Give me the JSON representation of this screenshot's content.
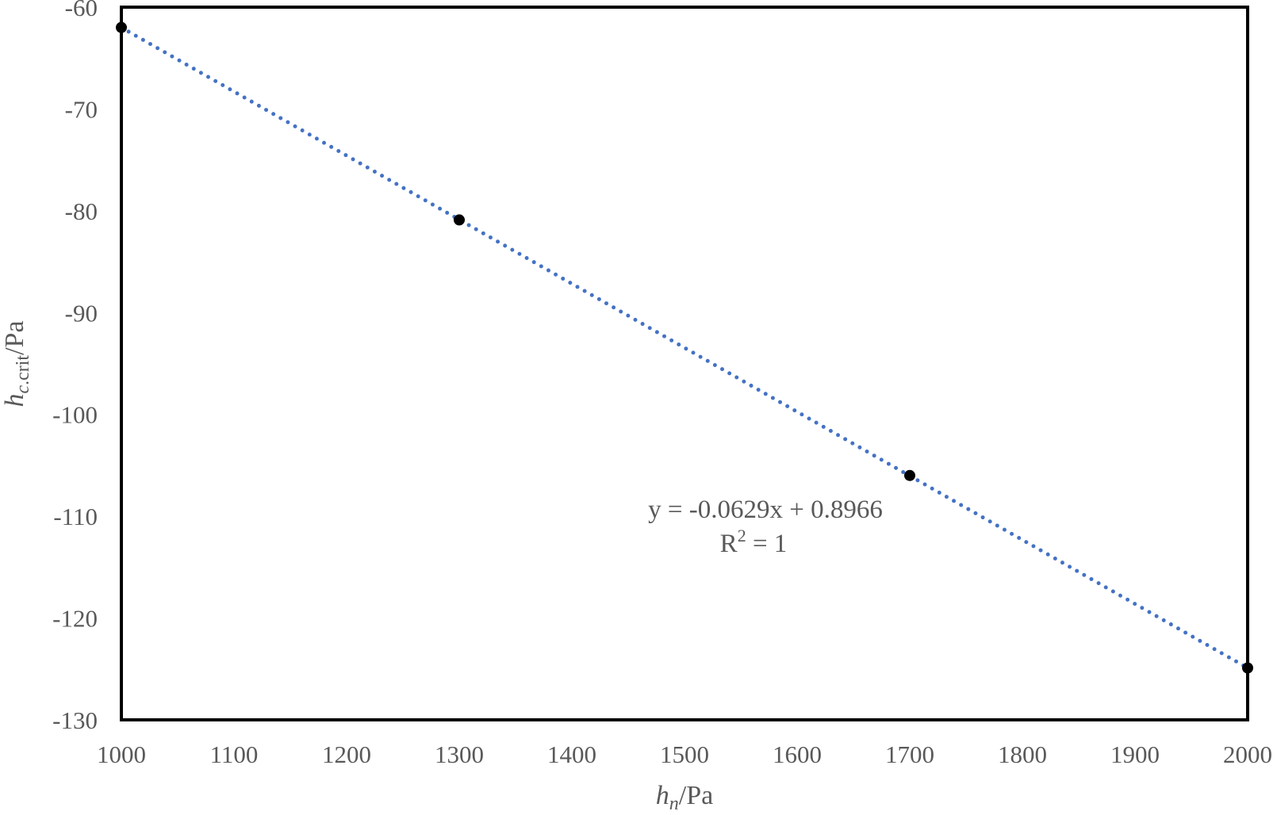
{
  "chart_data": {
    "type": "scatter",
    "xlabel": {
      "main": "h",
      "sub": "n",
      "unit": "/Pa"
    },
    "ylabel": {
      "main": "h",
      "sub_italic": "c",
      "sub_plain": ".crit",
      "unit": "/Pa"
    },
    "xlim": [
      1000,
      2000
    ],
    "ylim": [
      -130,
      -60
    ],
    "x_ticks": [
      "1000",
      "1100",
      "1200",
      "1300",
      "1400",
      "1500",
      "1600",
      "1700",
      "1800",
      "1900",
      "2000"
    ],
    "y_ticks": [
      "-60",
      "-70",
      "-80",
      "-90",
      "-100",
      "-110",
      "-120",
      "-130"
    ],
    "x_tick_values": [
      1000,
      1100,
      1200,
      1300,
      1400,
      1500,
      1600,
      1700,
      1800,
      1900,
      2000
    ],
    "y_tick_values": [
      -60,
      -70,
      -80,
      -90,
      -100,
      -110,
      -120,
      -130
    ],
    "points": [
      {
        "x": 1000,
        "y": -62.0
      },
      {
        "x": 1300,
        "y": -80.9
      },
      {
        "x": 1700,
        "y": -106.0
      },
      {
        "x": 2000,
        "y": -124.9
      }
    ],
    "trendline": {
      "type": "linear",
      "slope": -0.0629,
      "intercept": 0.8966,
      "x_range": [
        1000,
        2000
      ],
      "color": "#4472C4",
      "style": "dotted"
    },
    "annotation": {
      "equation": "y = -0.0629x + 0.8966",
      "r2_base": "R",
      "r2_exp": "2",
      "r2_value": " = 1"
    },
    "marker_color": "#000000",
    "grid": false,
    "legend": "none"
  }
}
